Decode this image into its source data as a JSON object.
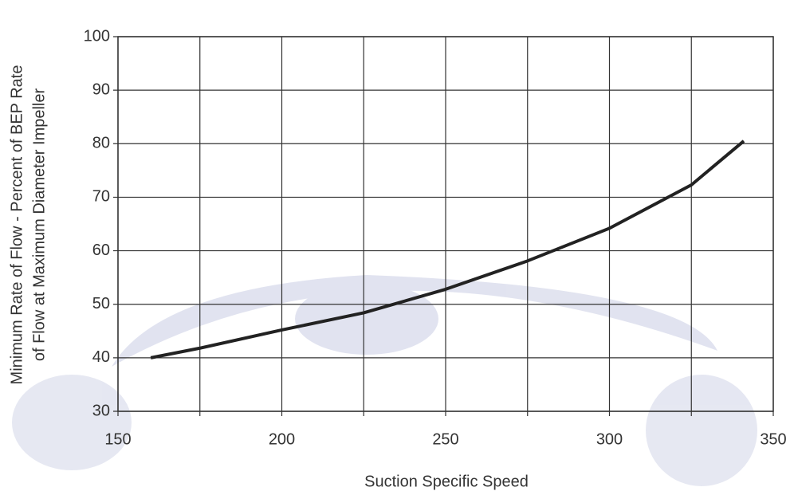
{
  "chart_data": {
    "type": "line",
    "xlabel": "Suction Specific Speed",
    "ylabel": [
      "Minimum Rate of Flow - Percent of BEP Rate",
      "of Flow at Maximum Diameter Impeller"
    ],
    "x": [
      160,
      175,
      200,
      225,
      250,
      275,
      300,
      325,
      341
    ],
    "series": [
      {
        "color": "#222222",
        "values": [
          40,
          41.8,
          45.2,
          48.4,
          52.8,
          58.1,
          64.2,
          72.3,
          80.5
        ]
      }
    ],
    "xlim": [
      150,
      350
    ],
    "xticks": [
      150,
      200,
      250,
      300,
      350
    ],
    "xminor": [
      175,
      225,
      275,
      325
    ],
    "ylim": [
      30,
      100
    ],
    "yticks": [
      30,
      40,
      50,
      60,
      70,
      80,
      90,
      100
    ],
    "grid": true
  }
}
